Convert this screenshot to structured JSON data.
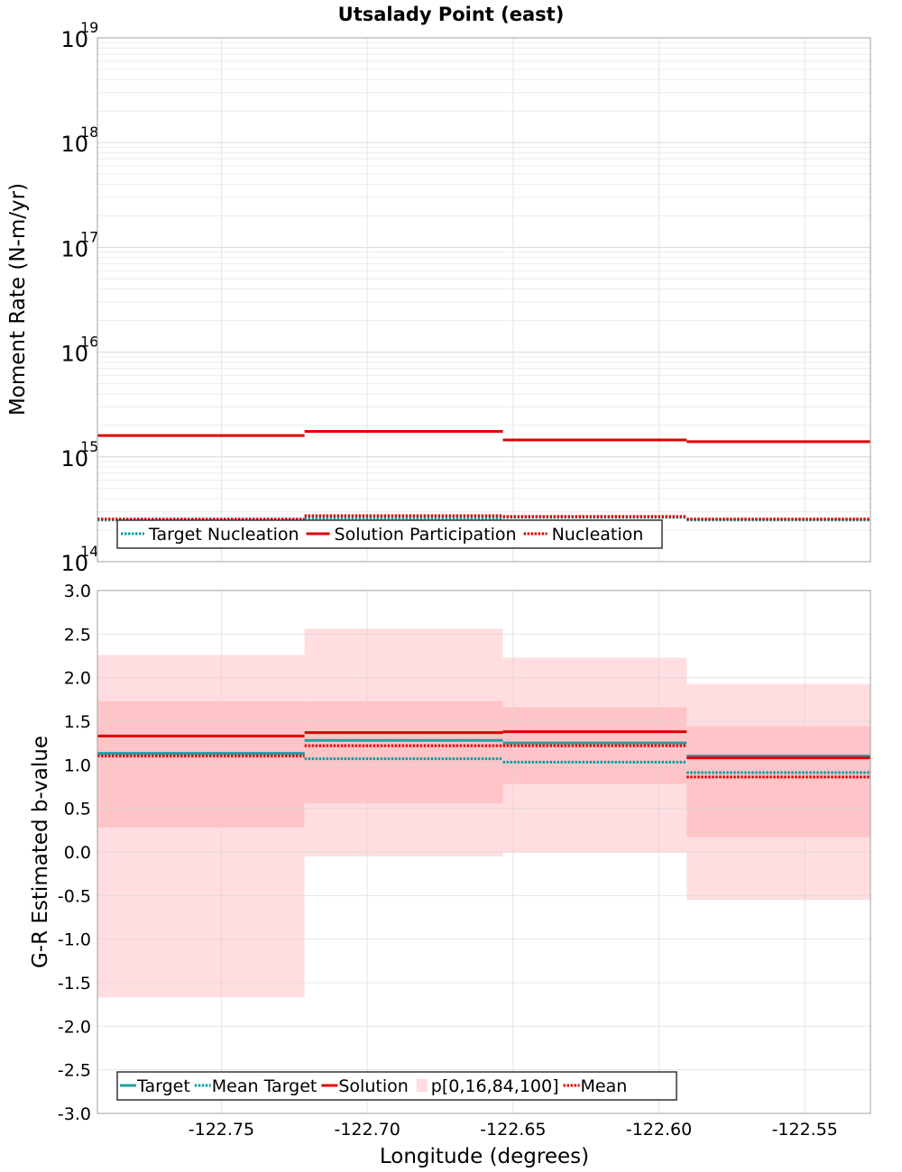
{
  "chart_data": [
    {
      "type": "line",
      "title": "Utsalady Point (east)",
      "xlabel": "",
      "ylabel": "Moment Rate (N-m/yr)",
      "yscale": "log",
      "ylim": [
        100000000000000.0,
        1e+19
      ],
      "xlim": [
        -122.7925,
        -122.5275
      ],
      "y_ticks": [
        {
          "base": "10",
          "exp": "14",
          "value": 100000000000000.0
        },
        {
          "base": "10",
          "exp": "15",
          "value": 1000000000000000.0
        },
        {
          "base": "10",
          "exp": "16",
          "value": 1e+16
        },
        {
          "base": "10",
          "exp": "17",
          "value": 1e+17
        },
        {
          "base": "10",
          "exp": "18",
          "value": 1e+18
        },
        {
          "base": "10",
          "exp": "19",
          "value": 1e+19
        }
      ],
      "grid": true,
      "legend_position": "bottom-left",
      "segments": [
        {
          "x0": -122.7925,
          "x1": -122.7215
        },
        {
          "x0": -122.7215,
          "x1": -122.6535
        },
        {
          "x0": -122.6535,
          "x1": -122.5905
        },
        {
          "x0": -122.5905,
          "x1": -122.5275
        }
      ],
      "series": [
        {
          "name": "Target Nucleation",
          "color": "#00a0a0",
          "style": "dotted",
          "values": [
            250000000000000.0,
            260000000000000.0,
            265000000000000.0,
            250000000000000.0
          ]
        },
        {
          "name": "Solution Participation",
          "color": "#e00000",
          "style": "solid",
          "values": [
            1600000000000000.0,
            1750000000000000.0,
            1450000000000000.0,
            1400000000000000.0
          ]
        },
        {
          "name": "Nucleation",
          "color": "#e00000",
          "style": "dotted",
          "values": [
            255000000000000.0,
            275000000000000.0,
            270000000000000.0,
            255000000000000.0
          ]
        }
      ]
    },
    {
      "type": "line",
      "title": "",
      "xlabel": "Longitude (degrees)",
      "ylabel": "G-R Estimated b-value",
      "ylim": [
        -3.0,
        3.0
      ],
      "xlim": [
        -122.7925,
        -122.5275
      ],
      "y_tick_labels": [
        "3.0",
        "2.5",
        "2.0",
        "1.5",
        "1.0",
        "0.5",
        "0.0",
        "-0.5",
        "-1.0",
        "-1.5",
        "-2.0",
        "-2.5",
        "-3.0"
      ],
      "x_tick_labels": [
        "-122.75",
        "-122.70",
        "-122.65",
        "-122.60",
        "-122.55"
      ],
      "grid": true,
      "legend_position": "bottom-left",
      "segments": [
        {
          "x0": -122.7925,
          "x1": -122.7215
        },
        {
          "x0": -122.7215,
          "x1": -122.6535
        },
        {
          "x0": -122.6535,
          "x1": -122.5905
        },
        {
          "x0": -122.5905,
          "x1": -122.5275
        }
      ],
      "bands": {
        "name": "p[0,16,84,100]",
        "outer_color": "#ffdde0",
        "inner_color": "#ffc4c8",
        "p0": [
          -1.67,
          -0.05,
          -0.01,
          -0.55
        ],
        "p16": [
          0.28,
          0.56,
          0.78,
          0.17
        ],
        "p84": [
          1.73,
          1.73,
          1.66,
          1.44
        ],
        "p100": [
          2.26,
          2.56,
          2.23,
          1.93
        ]
      },
      "series": [
        {
          "name": "Target",
          "color": "#20a0a0",
          "style": "solid",
          "values": [
            1.13,
            1.28,
            1.25,
            1.1
          ]
        },
        {
          "name": "Mean Target",
          "color": "#00a0a0",
          "style": "dotted",
          "values": [
            1.13,
            1.07,
            1.03,
            0.91
          ]
        },
        {
          "name": "Solution",
          "color": "#e00000",
          "style": "solid",
          "values": [
            1.33,
            1.37,
            1.38,
            1.08
          ]
        },
        {
          "name": "Mean",
          "color": "#e00000",
          "style": "dotted",
          "values": [
            1.1,
            1.22,
            1.22,
            0.86
          ]
        }
      ]
    }
  ]
}
